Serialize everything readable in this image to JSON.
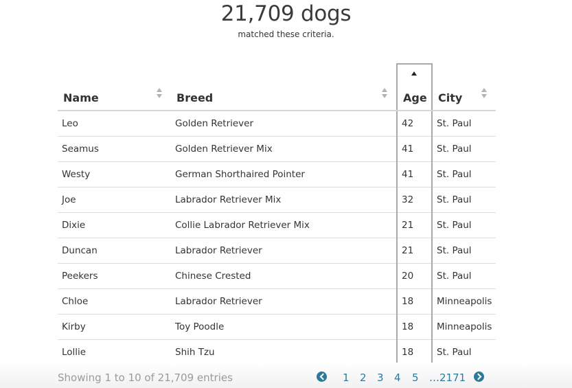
{
  "summary": {
    "count": "21,709 dogs",
    "caption": "matched these criteria."
  },
  "table": {
    "headers": [
      "Name",
      "Breed",
      "Age",
      "City"
    ],
    "rows": [
      [
        "Leo",
        "Golden Retriever",
        "42",
        "St. Paul"
      ],
      [
        "Seamus",
        "Golden Retriever Mix",
        "41",
        "St. Paul"
      ],
      [
        "Westy",
        "German Shorthaired Pointer",
        "41",
        "St. Paul"
      ],
      [
        "Joe",
        "Labrador Retriever Mix",
        "32",
        "St. Paul"
      ],
      [
        "Dixie",
        "Collie Labrador Retriever Mix",
        "21",
        "St. Paul"
      ],
      [
        "Duncan",
        "Labrador Retriever",
        "21",
        "St. Paul"
      ],
      [
        "Peekers",
        "Chinese Crested",
        "20",
        "St. Paul"
      ],
      [
        "Chloe",
        "Labrador Retriever",
        "18",
        "Minneapolis"
      ],
      [
        "Kirby",
        "Toy Poodle",
        "18",
        "Minneapolis"
      ],
      [
        "Lollie",
        "Shih Tzu",
        "18",
        "St. Paul"
      ]
    ]
  },
  "footer": {
    "info": "Showing 1 to 10 of 21,709 entries",
    "pages": [
      "1",
      "2",
      "3",
      "4",
      "5"
    ],
    "last_page": "…2171"
  },
  "colors": {
    "accent": "#2a7b97",
    "sorted_column_border": "#a9a9a9"
  }
}
